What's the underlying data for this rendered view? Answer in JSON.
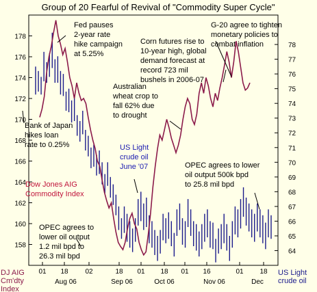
{
  "chart_data": {
    "type": "line",
    "title": "Group of 20 Fearful of Revival of \"Commodity Super Cycle\"",
    "left_axis": {
      "label_lines": [
        "DJ AIG",
        "Cm'dty",
        "Index"
      ],
      "ylim": [
        156,
        180
      ],
      "ticks": [
        158,
        160,
        162,
        164,
        166,
        168,
        170,
        172,
        174,
        176,
        178
      ]
    },
    "right_axis": {
      "label_lines": [
        "US Light",
        "crude oil"
      ],
      "ylim": [
        63,
        80
      ],
      "ticks": [
        64,
        65,
        66,
        67,
        68,
        69,
        70,
        71,
        72,
        73,
        74,
        75,
        76,
        77,
        78
      ]
    },
    "x_ticks": [
      "01",
      "18",
      "02",
      "18",
      "01",
      "18",
      "01",
      "16",
      "01",
      "18"
    ],
    "month_labels": [
      "Aug 06",
      "Sep 06",
      "Oct 06",
      "Nov 06",
      "Dec"
    ],
    "grid": false,
    "series": [
      {
        "name": "Dow Jones AIG Commodity Index",
        "name_lines": [
          "Dow Jones AIG",
          "Commodity Index"
        ],
        "type": "line",
        "axis": "left",
        "color": "#8b1a4a",
        "values": [
          170.2,
          171.0,
          172.2,
          174.5,
          176.0,
          177.0,
          178.3,
          179.5,
          178.0,
          177.2,
          176.2,
          176.8,
          175.5,
          174.0,
          173.2,
          172.0,
          173.5,
          172.5,
          171.8,
          172.0,
          171.5,
          170.2,
          169.0,
          168.0,
          167.2,
          166.0,
          165.5,
          164.2,
          163.0,
          162.2,
          161.5,
          162.0,
          160.5,
          159.2,
          158.2,
          157.8,
          157.5,
          158.2,
          159.5,
          160.5,
          161.0,
          160.0,
          159.5,
          158.2,
          157.5,
          157.0,
          157.3,
          159.0,
          161.0,
          163.5,
          165.5,
          167.2,
          168.5,
          168.0,
          169.0,
          170.0,
          169.2,
          168.2,
          167.5,
          166.8,
          167.5,
          168.5,
          170.0,
          171.2,
          172.0,
          171.5,
          170.0,
          169.5,
          170.5,
          172.5,
          173.5,
          172.5,
          174.0,
          173.2,
          172.0,
          171.2,
          172.5,
          171.8,
          173.0,
          174.0,
          175.2,
          176.5,
          175.5,
          174.0,
          175.5,
          177.5,
          176.5,
          175.0,
          173.5,
          172.8,
          173.0,
          173.5
        ]
      },
      {
        "name": "US Light crude oil",
        "name_lines": [
          "US Light",
          "crude oil",
          "June '07"
        ],
        "type": "bar_hl",
        "axis": "right",
        "color": "#1a1a8b",
        "highs": [
          76.5,
          76.2,
          75.8,
          77.5,
          76.8,
          77.4,
          78.8,
          77.0,
          77.2,
          76.2,
          76.0,
          74.8,
          75.0,
          74.2,
          74.5,
          73.2,
          72.8,
          73.5,
          72.2,
          71.8,
          71.0,
          71.2,
          70.5,
          70.8,
          70.0,
          69.2,
          70.0,
          69.0,
          68.5,
          67.8,
          67.0,
          66.2,
          67.0,
          66.5,
          66.0,
          65.5,
          66.2,
          67.5,
          68.0,
          67.2,
          67.6,
          66.4,
          66.0,
          65.4,
          65.0,
          65.4,
          66.5,
          66.2,
          66.6,
          66.0,
          65.2,
          66.8,
          67.2,
          66.2,
          66.0,
          67.5,
          66.8,
          66.0,
          65.8,
          65.3,
          65.8,
          66.5,
          66.8,
          66.0,
          65.9,
          64.8,
          65.5,
          65.8,
          66.5,
          65.8,
          65.0,
          66.0,
          67.0,
          66.8,
          67.5,
          68.3,
          67.6,
          67.2,
          66.8,
          66.5,
          67.2,
          66.8,
          66.4,
          65.9,
          66.8,
          66.4
        ],
        "lows": [
          74.6,
          74.8,
          74.6,
          75.5,
          75.4,
          75.8,
          76.4,
          75.4,
          75.4,
          74.6,
          74.5,
          73.5,
          73.4,
          72.7,
          72.8,
          71.8,
          71.4,
          71.9,
          70.8,
          70.4,
          69.6,
          69.7,
          69.1,
          69.2,
          68.5,
          67.9,
          68.4,
          67.6,
          67.1,
          66.4,
          65.4,
          64.8,
          65.2,
          64.6,
          64.2,
          63.9,
          64.6,
          65.7,
          66.0,
          65.4,
          65.6,
          64.5,
          64.2,
          63.7,
          63.3,
          63.8,
          64.7,
          64.5,
          64.8,
          64.3,
          63.6,
          65.0,
          65.4,
          64.4,
          64.2,
          65.6,
          65.0,
          64.3,
          64.0,
          63.6,
          64.1,
          64.6,
          64.9,
          64.2,
          64.1,
          63.2,
          63.8,
          64.1,
          64.5,
          64.0,
          63.3,
          64.2,
          65.1,
          64.9,
          65.5,
          66.3,
          65.7,
          65.3,
          64.9,
          64.6,
          65.3,
          64.9,
          64.5,
          64.1,
          64.9,
          64.8
        ]
      }
    ],
    "annotations": [
      {
        "lines": [
          "Fed pauses",
          "2-year rate",
          "hike campaign",
          "at 5.25%"
        ]
      },
      {
        "lines": [
          "Corn futures rise to",
          "10-year high, global",
          "demand forecast at",
          "record 723 mil",
          "bushels in 2006-07"
        ]
      },
      {
        "lines": [
          "G-20 agree to tighten",
          "monetary policies to",
          "combat inflation"
        ]
      },
      {
        "lines": [
          "Australian",
          "wheat crop to",
          "fall 62% due",
          "to drought"
        ]
      },
      {
        "lines": [
          "Bank of Japan",
          "hikes loan",
          "rate to 0.25%"
        ]
      },
      {
        "lines": [
          "OPEC agrees to lower",
          "oil output 500k bpd",
          "to 25.8 mil bpd"
        ]
      },
      {
        "lines": [
          "OPEC agrees to",
          "lower oil output",
          "1.2 mil bpd to",
          "26.3 mil bpd"
        ]
      }
    ]
  }
}
